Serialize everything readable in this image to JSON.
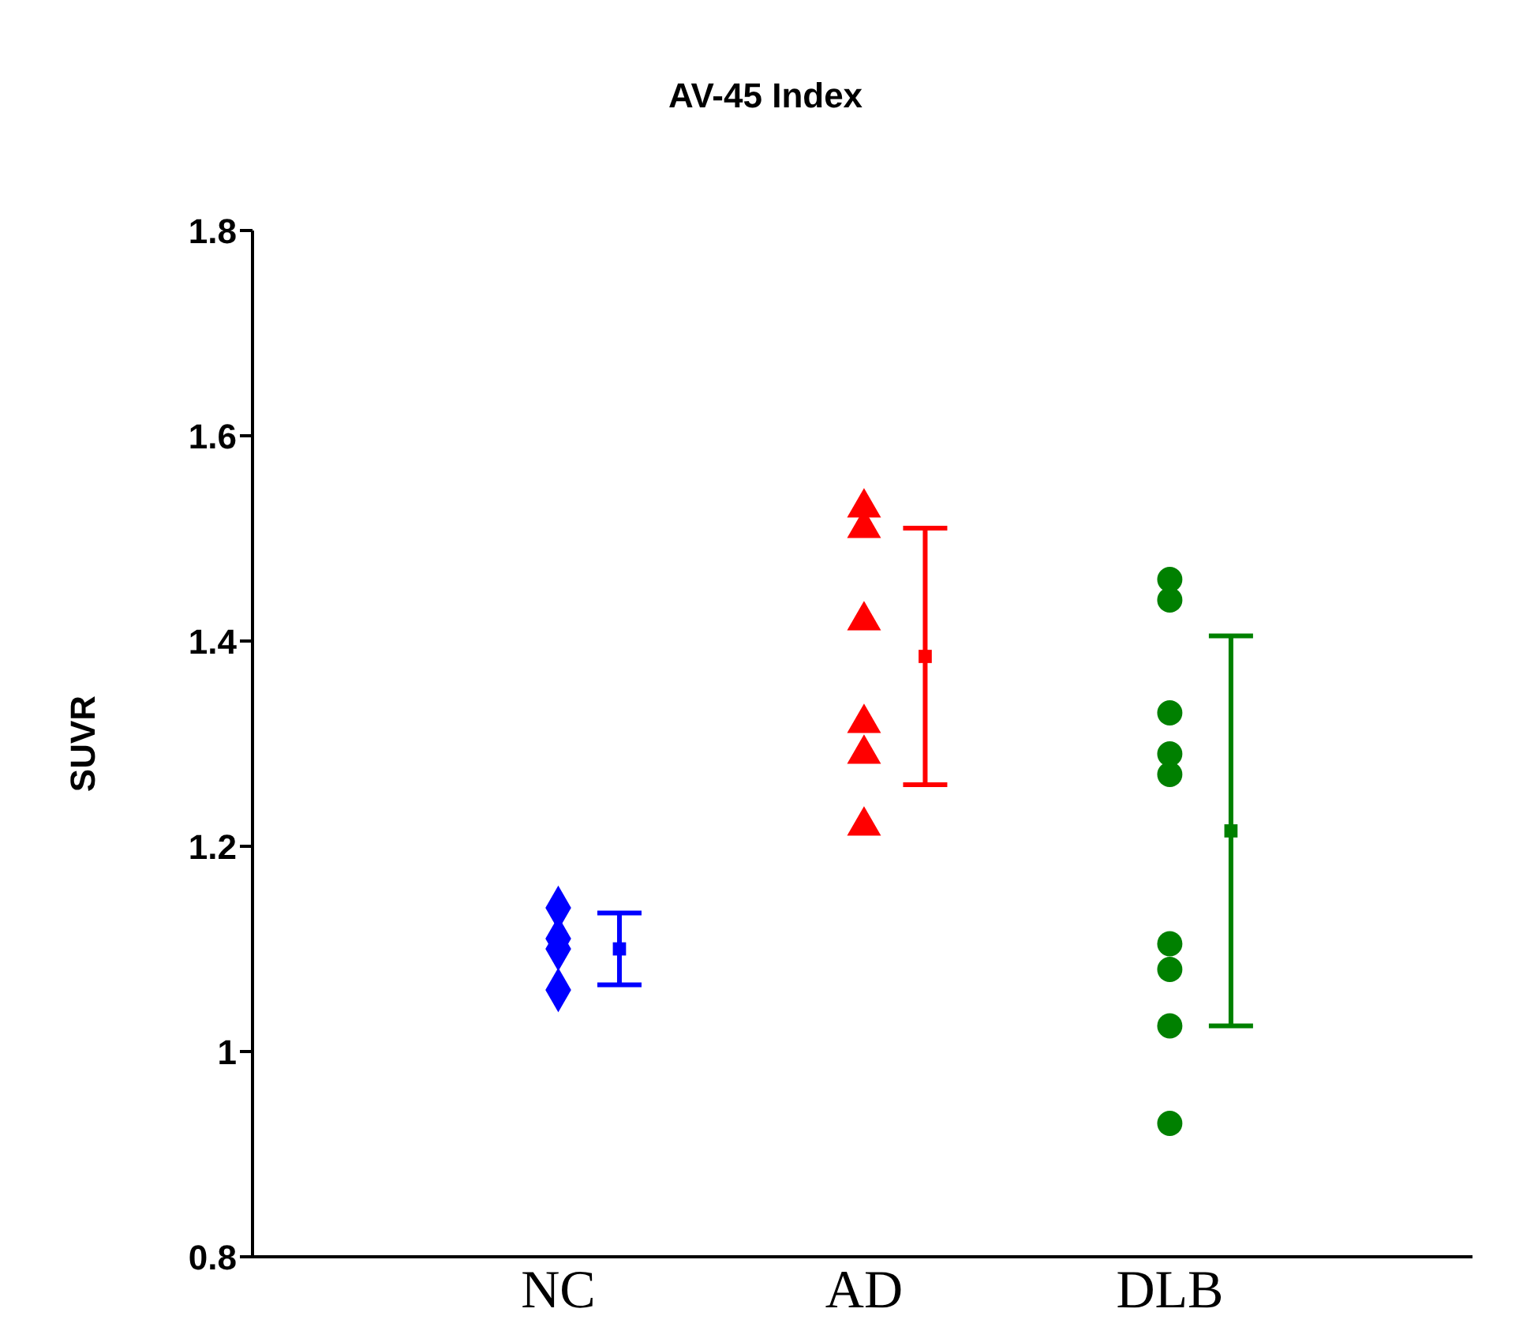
{
  "chart_data": {
    "type": "scatter",
    "title": "AV-45 Index",
    "ylabel": "SUVR",
    "categories": [
      "NC",
      "AD",
      "DLB"
    ],
    "ylim": [
      0.8,
      1.8
    ],
    "yticks": [
      0.8,
      {
        "value": 1,
        "label": "1"
      },
      1.2,
      1.4,
      1.6,
      1.8
    ],
    "series": [
      {
        "color": "#0000ff",
        "marker": "diamond",
        "x": [
          "NC",
          "NC",
          "NC",
          "NC"
        ],
        "values": [
          1.14,
          1.11,
          1.1,
          1.06
        ]
      },
      {
        "color": "#ff0000",
        "marker": "triangle",
        "x": [
          "AD",
          "AD",
          "AD",
          "AD",
          "AD",
          "AD"
        ],
        "values": [
          1.53,
          1.51,
          1.42,
          1.32,
          1.29,
          1.22
        ]
      },
      {
        "color": "#008000",
        "marker": "circle",
        "x": [
          "DLB",
          "DLB",
          "DLB",
          "DLB",
          "DLB",
          "DLB",
          "DLB",
          "DLB",
          "DLB"
        ],
        "values": [
          1.46,
          1.44,
          1.33,
          1.29,
          1.27,
          1.105,
          1.08,
          1.025,
          0.93
        ]
      },
      {
        "marker": "square",
        "x": [
          "NC",
          "AD",
          "DLB"
        ],
        "colors": [
          "#0000ff",
          "#ff0000",
          "#008000"
        ],
        "values": [
          1.1,
          1.385,
          1.215
        ],
        "errors": [
          0.035,
          0.125,
          0.19
        ]
      }
    ]
  }
}
